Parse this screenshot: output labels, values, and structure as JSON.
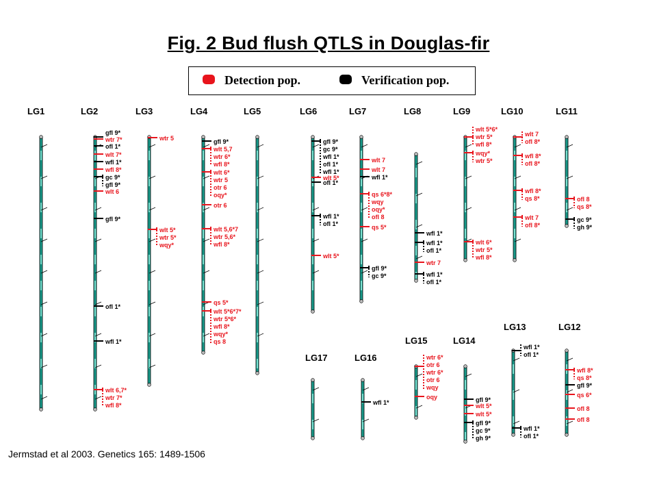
{
  "title": "Fig. 2   Bud flush QTLS in  Douglas-fir",
  "legend": {
    "detection_label": "Detection pop.",
    "verification_label": "Verification pop.",
    "detection_color": "#e8141c",
    "verification_color": "#000000"
  },
  "citation": "Jermstad et al 2003. Genetics 165: 1489-1506",
  "colors": {
    "chromosome_fill": "#1a9a8a",
    "chromosome_light": "#7fe6d6",
    "detection": "#e8141c",
    "verification": "#000000"
  },
  "linkage_groups": [
    {
      "name": "LG1",
      "qtls": []
    },
    {
      "name": "LG2",
      "qtls": [
        {
          "group": [
            "gfl 9*"
          ],
          "pop": "verification"
        },
        {
          "group": [
            "wtr 7*"
          ],
          "pop": "detection"
        },
        {
          "group": [
            "ofl 1*"
          ],
          "pop": "verification"
        },
        {
          "group": [
            "wlt 7*"
          ],
          "pop": "detection"
        },
        {
          "group": [
            "wfl 1*"
          ],
          "pop": "verification"
        },
        {
          "group": [
            "wfl 8*"
          ],
          "pop": "detection"
        },
        {
          "group": [
            "gc 9*",
            "gfl 9*"
          ],
          "pop": "verification"
        },
        {
          "group": [
            "wlt 6"
          ],
          "pop": "detection"
        },
        {
          "group": [
            "gfl 9*"
          ],
          "pop": "verification"
        },
        {
          "group": [
            "ofl 1*"
          ],
          "pop": "verification"
        },
        {
          "group": [
            "wfl 1*"
          ],
          "pop": "verification"
        },
        {
          "group": [
            "wlt 6,7*",
            "wtr 7*",
            "wfl 8*"
          ],
          "pop": "detection"
        }
      ]
    },
    {
      "name": "LG3",
      "qtls": [
        {
          "group": [
            "wtr  5"
          ],
          "pop": "detection"
        },
        {
          "group": [
            "wlt 5*",
            "wtr 5*",
            "wqy*"
          ],
          "pop": "detection"
        }
      ]
    },
    {
      "name": "LG4",
      "qtls": [
        {
          "group": [
            "gfl 9*"
          ],
          "pop": "verification"
        },
        {
          "group": [
            "wlt 5,7",
            "wtr 6*",
            "wfl 8*"
          ],
          "pop": "detection"
        },
        {
          "group": [
            "wlt 6*",
            "wtr 5",
            "otr 6",
            "oqy*"
          ],
          "pop": "detection"
        },
        {
          "group": [
            "otr 6"
          ],
          "pop": "detection"
        },
        {
          "group": [
            "wlt 5,6*7",
            "wtr 5,6*",
            "wfl 8*"
          ],
          "pop": "detection"
        },
        {
          "group": [
            "qs 5*"
          ],
          "pop": "detection"
        },
        {
          "group": [
            "wlt 5*6*7*",
            "wtr 5*6*",
            "wfl 8*",
            "wqy*",
            "qs 8"
          ],
          "pop": "detection"
        }
      ]
    },
    {
      "name": "LG5",
      "qtls": []
    },
    {
      "name": "LG6",
      "qtls": [
        {
          "group": [
            "gfl 9*",
            "gc 9*",
            "wfl 1*",
            "ofl 1*",
            "wfl 1*"
          ],
          "pop": "verification"
        },
        {
          "group": [
            "wlt 5*"
          ],
          "pop": "detection"
        },
        {
          "group": [
            "ofl 1*"
          ],
          "pop": "verification"
        },
        {
          "group": [
            "wfl 1*",
            "ofl 1*"
          ],
          "pop": "verification"
        },
        {
          "group": [
            "wlt 5*"
          ],
          "pop": "detection"
        }
      ]
    },
    {
      "name": "LG7",
      "qtls": [
        {
          "group": [
            "wlt 7"
          ],
          "pop": "detection"
        },
        {
          "group": [
            "wlt 7"
          ],
          "pop": "detection"
        },
        {
          "group": [
            "wfl 1*"
          ],
          "pop": "verification"
        },
        {
          "group": [
            "qs 6*8*",
            "wqy",
            "oqy*",
            "ofl 8"
          ],
          "pop": "detection"
        },
        {
          "group": [
            "qs 5*"
          ],
          "pop": "detection"
        },
        {
          "group": [
            "gfl 9*",
            "gc 9*"
          ],
          "pop": "verification"
        }
      ]
    },
    {
      "name": "LG8",
      "qtls": [
        {
          "group": [
            "wfl 1*"
          ],
          "pop": "verification"
        },
        {
          "group": [
            "wfl 1*",
            "ofl 1*"
          ],
          "pop": "verification"
        },
        {
          "group": [
            "wtr 7"
          ],
          "pop": "detection"
        },
        {
          "group": [
            "wfl 1*",
            "ofl 1*"
          ],
          "pop": "verification"
        }
      ]
    },
    {
      "name": "LG9",
      "qtls": [
        {
          "group": [
            "wlt 5*6*",
            "wtr 5*",
            "wfl 8*"
          ],
          "pop": "detection"
        },
        {
          "group": [
            "wqy*",
            "wtr 5*"
          ],
          "pop": "detection"
        },
        {
          "group": [
            "wlt 6*",
            "wtr 5*",
            "wfl 8*"
          ],
          "pop": "detection"
        }
      ]
    },
    {
      "name": "LG10",
      "qtls": [
        {
          "group": [
            "wlt 7",
            "ofl 8*"
          ],
          "pop": "detection"
        },
        {
          "group": [
            "wfl 8*",
            "ofl 8*"
          ],
          "pop": "detection"
        },
        {
          "group": [
            "wfl 8*",
            "qs 8*"
          ],
          "pop": "detection"
        },
        {
          "group": [
            "wlt 7",
            "ofl 8*"
          ],
          "pop": "detection"
        }
      ]
    },
    {
      "name": "LG11",
      "qtls": [
        {
          "group": [
            "ofl 8",
            "qs 8*"
          ],
          "pop": "detection"
        },
        {
          "group": [
            "gc 9*",
            "gh 9*"
          ],
          "pop": "verification"
        }
      ]
    },
    {
      "name": "LG12",
      "qtls": [
        {
          "group": [
            "wfl 8*",
            "qs 8*"
          ],
          "pop": "detection"
        },
        {
          "group": [
            "gfl 9*"
          ],
          "pop": "verification"
        },
        {
          "group": [
            "qs 6*"
          ],
          "pop": "detection"
        },
        {
          "group": [
            "ofl 8"
          ],
          "pop": "detection"
        },
        {
          "group": [
            "ofl 8"
          ],
          "pop": "detection"
        }
      ]
    },
    {
      "name": "LG13",
      "qtls": [
        {
          "group": [
            "wfl 1*",
            "ofl 1*"
          ],
          "pop": "verification"
        },
        {
          "group": [
            "wfl 1*",
            "ofl 1*"
          ],
          "pop": "verification"
        }
      ]
    },
    {
      "name": "LG14",
      "qtls": [
        {
          "group": [
            "gfl 9*"
          ],
          "pop": "verification"
        },
        {
          "group": [
            "wlt 5*"
          ],
          "pop": "detection"
        },
        {
          "group": [
            "wlt 5*"
          ],
          "pop": "detection"
        },
        {
          "group": [
            "gfl 9*",
            "gc 9*",
            "gh 9*"
          ],
          "pop": "verification"
        }
      ]
    },
    {
      "name": "LG15",
      "qtls": [
        {
          "group": [
            "wtr 6*",
            "otr 6",
            "wtr 6*",
            "otr 6",
            "wqy"
          ],
          "pop": "detection"
        },
        {
          "group": [
            "oqy"
          ],
          "pop": "detection"
        }
      ]
    },
    {
      "name": "LG16",
      "qtls": [
        {
          "group": [
            "wfl 1*"
          ],
          "pop": "verification"
        }
      ]
    },
    {
      "name": "LG17",
      "qtls": []
    }
  ]
}
